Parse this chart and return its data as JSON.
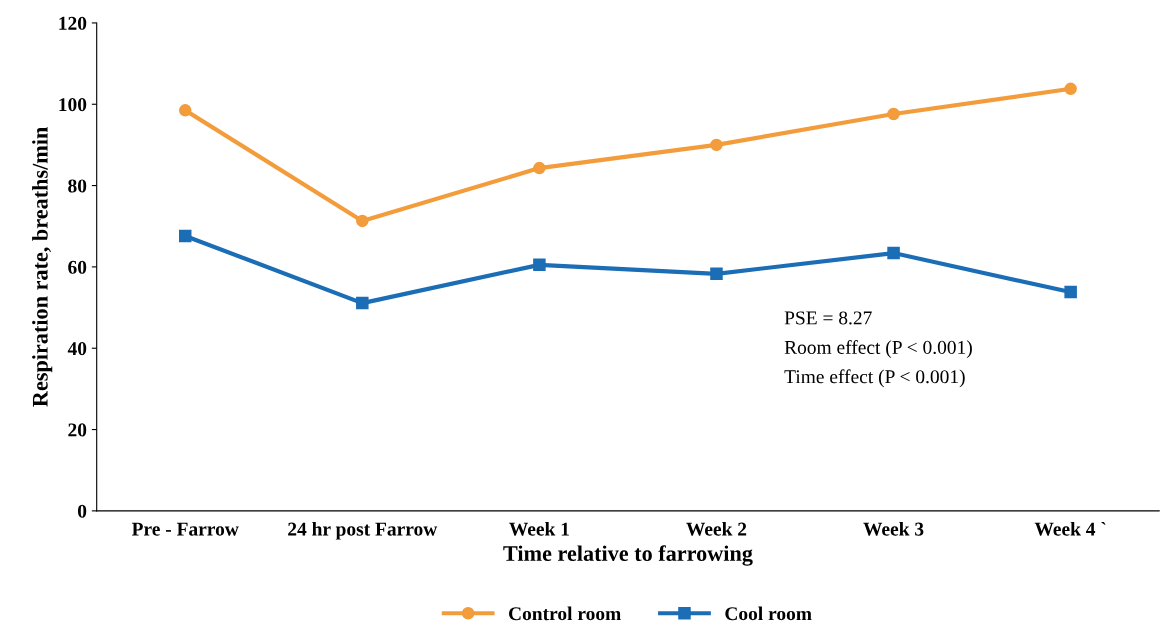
{
  "chart_data": {
    "type": "line",
    "xlabel": "Time relative to farrowing",
    "ylabel": "Respiration rate, breaths/min",
    "categories": [
      "Pre - Farrow",
      "24 hr post Farrow",
      "Week 1",
      "Week 2",
      "Week 3",
      "Week 4 `"
    ],
    "series": [
      {
        "name": "Control room",
        "color": "#f39c3c",
        "marker": "circle",
        "values": [
          98.5,
          71.3,
          84.3,
          90.0,
          97.6,
          103.8
        ]
      },
      {
        "name": "Cool room",
        "color": "#1b6db5",
        "marker": "square",
        "values": [
          67.6,
          51.1,
          60.5,
          58.3,
          63.4,
          53.8
        ]
      }
    ],
    "ylim": [
      0,
      120
    ],
    "yticks": [
      0,
      20,
      40,
      60,
      80,
      100,
      120
    ],
    "grid": false,
    "legend": "bottom",
    "annotations": [
      "PSE = 8.27",
      "Room effect (P < 0.001)",
      "Time effect (P < 0.001)"
    ]
  }
}
